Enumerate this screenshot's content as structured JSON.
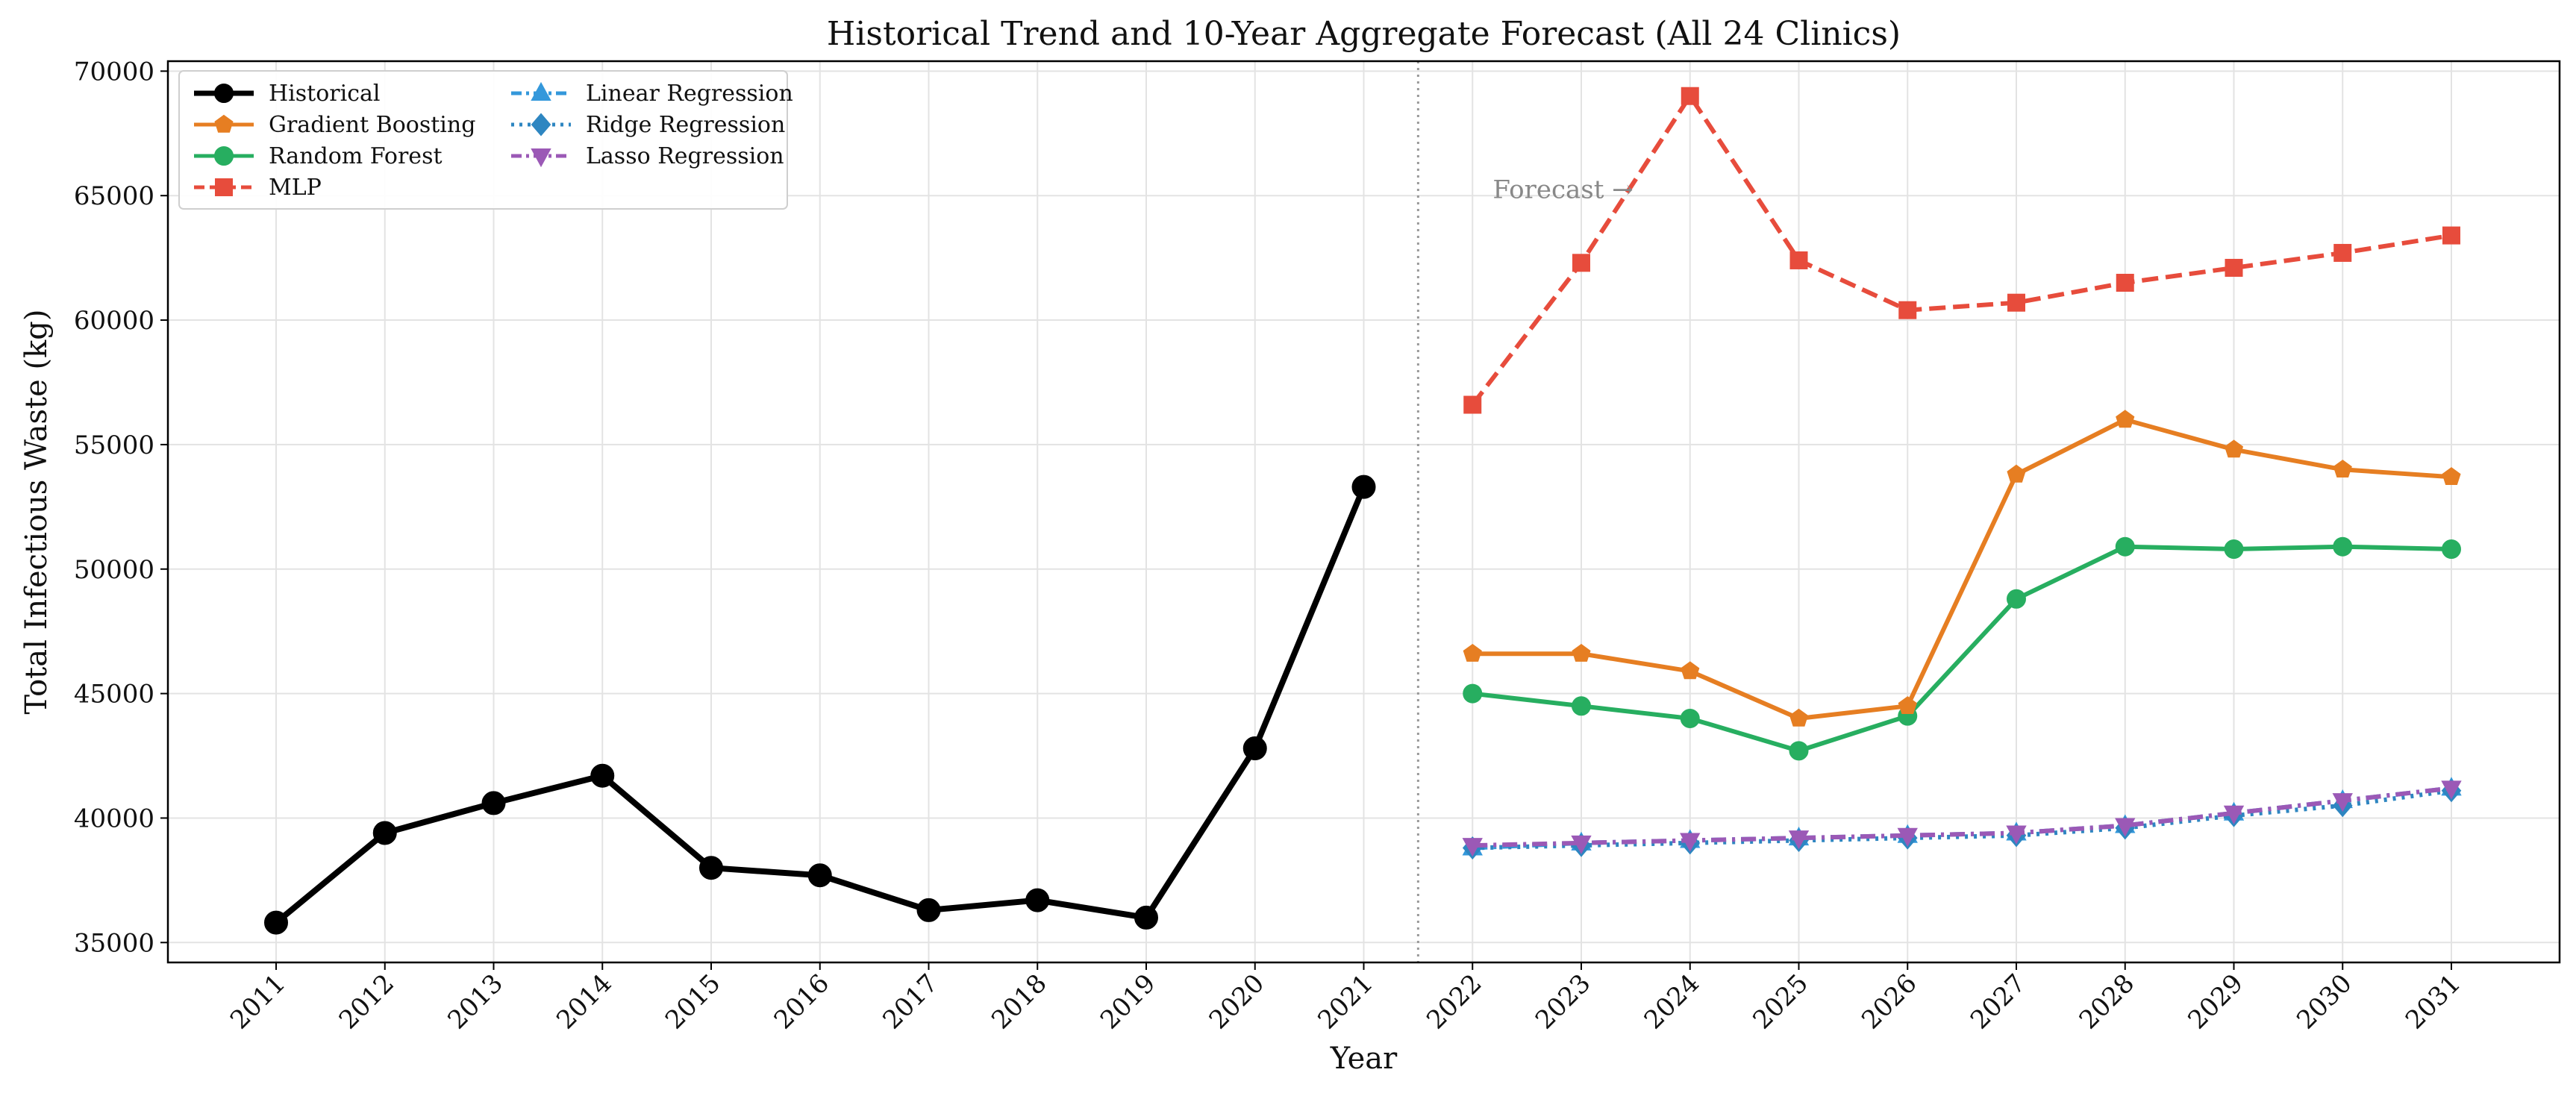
{
  "chart_data": {
    "type": "line",
    "title": "Historical Trend and 10-Year Aggregate Forecast (All 24 Clinics)",
    "xlabel": "Year",
    "ylabel": "Total Infectious Waste (kg)",
    "categories": [
      "2011",
      "2012",
      "2013",
      "2014",
      "2015",
      "2016",
      "2017",
      "2018",
      "2019",
      "2020",
      "2021",
      "2022",
      "2023",
      "2024",
      "2025",
      "2026",
      "2027",
      "2028",
      "2029",
      "2030",
      "2031"
    ],
    "y_ticks": [
      35000,
      40000,
      45000,
      50000,
      55000,
      60000,
      65000,
      70000
    ],
    "y_tick_labels": [
      "35000",
      "40000",
      "45000",
      "50000",
      "55000",
      "60000",
      "65000",
      "70000"
    ],
    "ylim": [
      34200,
      70400
    ],
    "grid": true,
    "legend_position": "top-left",
    "forecast_divider_after": "2021",
    "annotation": "Forecast →",
    "series": [
      {
        "name": "Historical",
        "color": "#000000",
        "marker": "circle",
        "line_style": "solid",
        "x": [
          "2011",
          "2012",
          "2013",
          "2014",
          "2015",
          "2016",
          "2017",
          "2018",
          "2019",
          "2020",
          "2021"
        ],
        "values": [
          35800,
          39400,
          40600,
          41700,
          38000,
          37700,
          36300,
          36700,
          36000,
          42800,
          53300
        ]
      },
      {
        "name": "Gradient Boosting",
        "color": "#e67e22",
        "marker": "pentagon",
        "line_style": "solid",
        "x": [
          "2022",
          "2023",
          "2024",
          "2025",
          "2026",
          "2027",
          "2028",
          "2029",
          "2030",
          "2031"
        ],
        "values": [
          46600,
          46600,
          45900,
          44000,
          44500,
          53800,
          56000,
          54800,
          54000,
          53700
        ]
      },
      {
        "name": "Random Forest",
        "color": "#27ae60",
        "marker": "circle",
        "line_style": "solid",
        "x": [
          "2022",
          "2023",
          "2024",
          "2025",
          "2026",
          "2027",
          "2028",
          "2029",
          "2030",
          "2031"
        ],
        "values": [
          45000,
          44500,
          44000,
          42700,
          44100,
          48800,
          50900,
          50800,
          50900,
          50800
        ]
      },
      {
        "name": "MLP",
        "color": "#e74c3c",
        "marker": "square",
        "line_style": "dashed",
        "x": [
          "2022",
          "2023",
          "2024",
          "2025",
          "2026",
          "2027",
          "2028",
          "2029",
          "2030",
          "2031"
        ],
        "values": [
          56600,
          62300,
          69000,
          62400,
          60400,
          60700,
          61500,
          62100,
          62700,
          63400
        ]
      },
      {
        "name": "Linear Regression",
        "color": "#3498db",
        "marker": "triangle-up",
        "line_style": "dashdot",
        "x": [
          "2022",
          "2023",
          "2024",
          "2025",
          "2026",
          "2027",
          "2028",
          "2029",
          "2030",
          "2031"
        ],
        "values": [
          38800,
          39000,
          39100,
          39200,
          39300,
          39400,
          39700,
          40200,
          40700,
          41200
        ]
      },
      {
        "name": "Ridge Regression",
        "color": "#2e86c1",
        "marker": "diamond",
        "line_style": "dotted",
        "x": [
          "2022",
          "2023",
          "2024",
          "2025",
          "2026",
          "2027",
          "2028",
          "2029",
          "2030",
          "2031"
        ],
        "values": [
          38800,
          38900,
          39000,
          39100,
          39200,
          39300,
          39600,
          40100,
          40500,
          41100
        ]
      },
      {
        "name": "Lasso Regression",
        "color": "#9b59b6",
        "marker": "triangle-down",
        "line_style": "dashdot",
        "x": [
          "2022",
          "2023",
          "2024",
          "2025",
          "2026",
          "2027",
          "2028",
          "2029",
          "2030",
          "2031"
        ],
        "values": [
          38900,
          39000,
          39100,
          39200,
          39300,
          39400,
          39700,
          40200,
          40700,
          41200
        ]
      }
    ]
  }
}
